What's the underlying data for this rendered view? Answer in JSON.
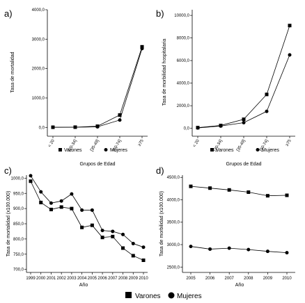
{
  "legend": {
    "varones": "Varones",
    "mujeres": "Mujeres"
  },
  "chart_data": [
    {
      "type": "line",
      "panel_label": "a)",
      "ylabel": "Tasa de mortalidad",
      "xlabel": "Grupos de Edad",
      "ylim": [
        -300,
        4000
      ],
      "yticks": [
        0,
        1000,
        2000,
        3000,
        4000
      ],
      "ytick_labels": [
        "0,0",
        "1000,0",
        "2000,0",
        "3000,0",
        "4000,0"
      ],
      "categories": [
        "< 20",
        "[20-34]",
        "[35-49]",
        "[50-74]",
        "≥75"
      ],
      "legend_labels": [
        "Varones",
        "Mujeres"
      ],
      "series": [
        {
          "name": "Varones",
          "marker": "square",
          "values": [
            5,
            8,
            40,
            420,
            2740
          ]
        },
        {
          "name": "Mujeres",
          "marker": "circle",
          "values": [
            3,
            6,
            20,
            250,
            2680
          ]
        }
      ]
    },
    {
      "type": "line",
      "panel_label": "b)",
      "ylabel": "Tasa de morbilidad hospitalaria",
      "xlabel": "Grupos de Edad",
      "ylim": [
        -700,
        10500
      ],
      "yticks": [
        0,
        2000,
        4000,
        6000,
        8000,
        10000
      ],
      "ytick_labels": [
        "0,0",
        "2000,0",
        "4000,0",
        "6000,0",
        "8000,0",
        "10000,0"
      ],
      "categories": [
        "< 20",
        "[20-34]",
        "[35-49]",
        "[50-74]",
        "≥75"
      ],
      "legend_labels": [
        "Varones",
        "Mujeres"
      ],
      "series": [
        {
          "name": "Varones",
          "marker": "square",
          "values": [
            60,
            250,
            800,
            3000,
            9100
          ]
        },
        {
          "name": "Mujeres",
          "marker": "circle",
          "values": [
            30,
            200,
            500,
            1500,
            6500
          ]
        }
      ]
    },
    {
      "type": "line",
      "panel_label": "c)",
      "ylabel": "Tasa de mortalidad (x100.000)",
      "xlabel": "Año",
      "ylim": [
        690,
        1010
      ],
      "yticks": [
        700,
        750,
        800,
        850,
        900,
        950,
        1000
      ],
      "ytick_labels": [
        "700,0",
        "750,0",
        "800,0",
        "850,0",
        "900,0",
        "950,0",
        "1000,0"
      ],
      "categories": [
        "1999",
        "2000",
        "2001",
        "2002",
        "2003",
        "2004",
        "2005",
        "2006",
        "2007",
        "2008",
        "2009",
        "2010"
      ],
      "series": [
        {
          "name": "Varones",
          "marker": "square",
          "values": [
            990,
            920,
            897,
            905,
            900,
            838,
            845,
            805,
            808,
            770,
            745,
            730
          ]
        },
        {
          "name": "Mujeres",
          "marker": "circle",
          "values": [
            1008,
            955,
            918,
            925,
            948,
            895,
            895,
            828,
            825,
            815,
            785,
            773
          ]
        }
      ]
    },
    {
      "type": "line",
      "panel_label": "d)",
      "ylabel": "Tasa de morbilidad (x100.000)",
      "xlabel": "Año",
      "ylim": [
        2380,
        4550
      ],
      "yticks": [
        2500,
        3000,
        3500,
        4000,
        4500
      ],
      "ytick_labels": [
        "2500,0",
        "3000,0",
        "3500,0",
        "4000,0",
        "4500,0"
      ],
      "categories": [
        "2005",
        "2006",
        "2007",
        "2008",
        "2009",
        "2010"
      ],
      "series": [
        {
          "name": "Varones",
          "marker": "square",
          "values": [
            4300,
            4260,
            4220,
            4170,
            4090,
            4100
          ]
        },
        {
          "name": "Mujeres",
          "marker": "circle",
          "values": [
            2960,
            2900,
            2920,
            2890,
            2850,
            2820
          ]
        }
      ]
    }
  ]
}
